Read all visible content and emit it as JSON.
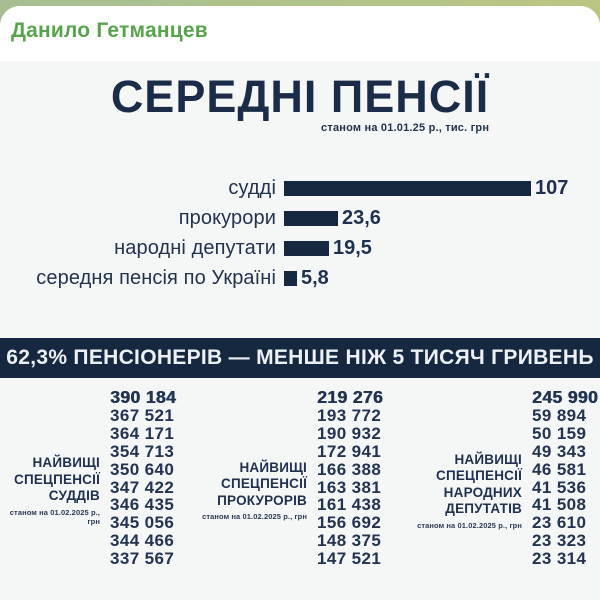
{
  "chat": {
    "sender_name": "Данило Гетманцев"
  },
  "infographic": {
    "title": "СЕРЕДНІ ПЕНСІЇ",
    "title_note": "станом на 01.01.25 р., тис. грн",
    "banner_text": "62,3% ПЕНСІОНЕРІВ — МЕНШЕ НІЖ 5 ТИСЯЧ ГРИВЕНЬ",
    "bars": [
      {
        "label": "судді",
        "display": "107",
        "value": 107
      },
      {
        "label": "прокурори",
        "display": "23,6",
        "value": 23.6
      },
      {
        "label": "народні депутати",
        "display": "19,5",
        "value": 19.5
      },
      {
        "label": "середня пенсія по Україні",
        "display": "5,8",
        "value": 5.8
      }
    ],
    "columns": [
      {
        "label_lines": [
          "НАЙВИЩІ",
          "СПЕЦПЕНСІЇ",
          "СУДДІВ"
        ],
        "note": "станом на 01.02.2025 р., грн",
        "values": [
          "390 184",
          "367 521",
          "364 171",
          "354 713",
          "350 640",
          "347 422",
          "346 435",
          "345 056",
          "344 466",
          "337 567"
        ]
      },
      {
        "label_lines": [
          "НАЙВИЩІ",
          "СПЕЦПЕНСІЇ",
          "ПРОКУРОРІВ"
        ],
        "note": "станом на 01.02.2025 р., грн",
        "values": [
          "219 276",
          "193 772",
          "190 932",
          "172 941",
          "166 388",
          "163 381",
          "161 438",
          "156 692",
          "148 375",
          "147 521"
        ]
      },
      {
        "label_lines": [
          "НАЙВИЩІ",
          "СПЕЦПЕНСІЇ",
          "НАРОДНИХ",
          "ДЕПУТАТІВ"
        ],
        "note": "станом на 01.02.2025 р., грн",
        "values": [
          "245 990",
          "59 894",
          "50 159",
          "49 343",
          "46 581",
          "41 536",
          "41 508",
          "23 610",
          "23 323",
          "23 314"
        ]
      }
    ],
    "colors": {
      "navy": "#16283f",
      "accent_green": "#58a44c",
      "panel_bg": "#f5f7f6"
    }
  },
  "chart_data": [
    {
      "type": "bar",
      "orientation": "horizontal",
      "title": "СЕРЕДНІ ПЕНСІЇ",
      "subtitle": "станом на 01.01.25 р., тис. грн",
      "categories": [
        "судді",
        "прокурори",
        "народні депутати",
        "середня пенсія по Україні"
      ],
      "values": [
        107,
        23.6,
        19.5,
        5.8
      ],
      "value_labels": [
        "107",
        "23,6",
        "19,5",
        "5,8"
      ],
      "unit": "тис. грн",
      "xlim": [
        0,
        110
      ],
      "grid": false,
      "legend": false,
      "bar_color": "#16283f"
    },
    {
      "type": "table",
      "title": "НАЙВИЩІ СПЕЦПЕНСІЇ СУДДІВ",
      "note": "станом на 01.02.2025 р., грн",
      "values": [
        390184,
        367521,
        364171,
        354713,
        350640,
        347422,
        346435,
        345056,
        344466,
        337567
      ]
    },
    {
      "type": "table",
      "title": "НАЙВИЩІ СПЕЦПЕНСІЇ ПРОКУРОРІВ",
      "note": "станом на 01.02.2025 р., грн",
      "values": [
        219276,
        193772,
        190932,
        172941,
        166388,
        163381,
        161438,
        156692,
        148375,
        147521
      ]
    },
    {
      "type": "table",
      "title": "НАЙВИЩІ СПЕЦПЕНСІЇ НАРОДНИХ ДЕПУТАТІВ",
      "note": "станом на 01.02.2025 р., грн",
      "values": [
        245990,
        59894,
        50159,
        49343,
        46581,
        41536,
        41508,
        23610,
        23323,
        23314
      ]
    }
  ]
}
